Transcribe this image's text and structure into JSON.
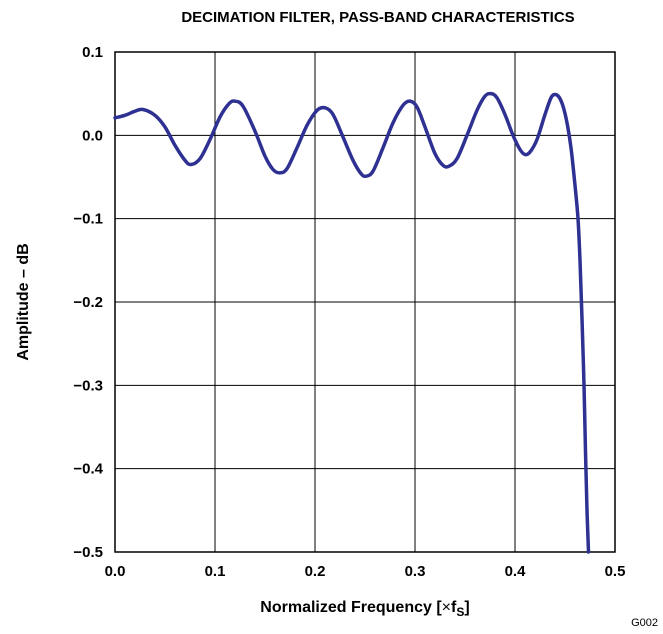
{
  "chart_data": {
    "type": "line",
    "title": "DECIMATION FILTER, PASS-BAND CHARACTERISTICS",
    "xlabel_main": "Normalized Frequency [",
    "xlabel_times": "×",
    "xlabel_f": "f",
    "xlabel_sub": "S",
    "xlabel_close": "]",
    "ylabel": "Amplitude – dB",
    "figure_code": "G002",
    "xlim": [
      0.0,
      0.5
    ],
    "ylim": [
      -0.5,
      0.1
    ],
    "x_ticks": [
      "0.0",
      "0.1",
      "0.2",
      "0.3",
      "0.4",
      "0.5"
    ],
    "y_ticks": [
      "0.1",
      "0.0",
      "−0.1",
      "−0.2",
      "−0.3",
      "−0.4",
      "−0.5"
    ],
    "grid": true,
    "line_color": "#2e3192",
    "series": [
      {
        "points": [
          [
            0.0,
            0.021
          ],
          [
            0.01,
            0.024
          ],
          [
            0.02,
            0.029
          ],
          [
            0.028,
            0.031
          ],
          [
            0.04,
            0.024
          ],
          [
            0.05,
            0.01
          ],
          [
            0.06,
            -0.012
          ],
          [
            0.07,
            -0.03
          ],
          [
            0.076,
            -0.035
          ],
          [
            0.085,
            -0.028
          ],
          [
            0.095,
            -0.005
          ],
          [
            0.105,
            0.022
          ],
          [
            0.114,
            0.038
          ],
          [
            0.12,
            0.041
          ],
          [
            0.128,
            0.035
          ],
          [
            0.14,
            0.005
          ],
          [
            0.15,
            -0.025
          ],
          [
            0.158,
            -0.041
          ],
          [
            0.165,
            -0.045
          ],
          [
            0.172,
            -0.04
          ],
          [
            0.182,
            -0.015
          ],
          [
            0.192,
            0.012
          ],
          [
            0.202,
            0.03
          ],
          [
            0.21,
            0.033
          ],
          [
            0.218,
            0.025
          ],
          [
            0.228,
            -0.002
          ],
          [
            0.238,
            -0.03
          ],
          [
            0.246,
            -0.046
          ],
          [
            0.251,
            -0.049
          ],
          [
            0.258,
            -0.043
          ],
          [
            0.268,
            -0.015
          ],
          [
            0.278,
            0.015
          ],
          [
            0.288,
            0.036
          ],
          [
            0.295,
            0.041
          ],
          [
            0.302,
            0.034
          ],
          [
            0.31,
            0.01
          ],
          [
            0.32,
            -0.022
          ],
          [
            0.328,
            -0.036
          ],
          [
            0.334,
            -0.037
          ],
          [
            0.342,
            -0.028
          ],
          [
            0.352,
            0.0
          ],
          [
            0.362,
            0.03
          ],
          [
            0.37,
            0.047
          ],
          [
            0.376,
            0.05
          ],
          [
            0.382,
            0.045
          ],
          [
            0.39,
            0.025
          ],
          [
            0.398,
            0.0
          ],
          [
            0.405,
            -0.017
          ],
          [
            0.41,
            -0.023
          ],
          [
            0.415,
            -0.02
          ],
          [
            0.422,
            -0.005
          ],
          [
            0.43,
            0.025
          ],
          [
            0.436,
            0.045
          ],
          [
            0.44,
            0.049
          ],
          [
            0.444,
            0.046
          ],
          [
            0.448,
            0.035
          ],
          [
            0.452,
            0.015
          ],
          [
            0.456,
            -0.015
          ],
          [
            0.46,
            -0.06
          ],
          [
            0.463,
            -0.1
          ],
          [
            0.465,
            -0.15
          ],
          [
            0.467,
            -0.22
          ],
          [
            0.469,
            -0.3
          ],
          [
            0.4705,
            -0.38
          ],
          [
            0.472,
            -0.45
          ],
          [
            0.4735,
            -0.5
          ]
        ]
      }
    ]
  }
}
